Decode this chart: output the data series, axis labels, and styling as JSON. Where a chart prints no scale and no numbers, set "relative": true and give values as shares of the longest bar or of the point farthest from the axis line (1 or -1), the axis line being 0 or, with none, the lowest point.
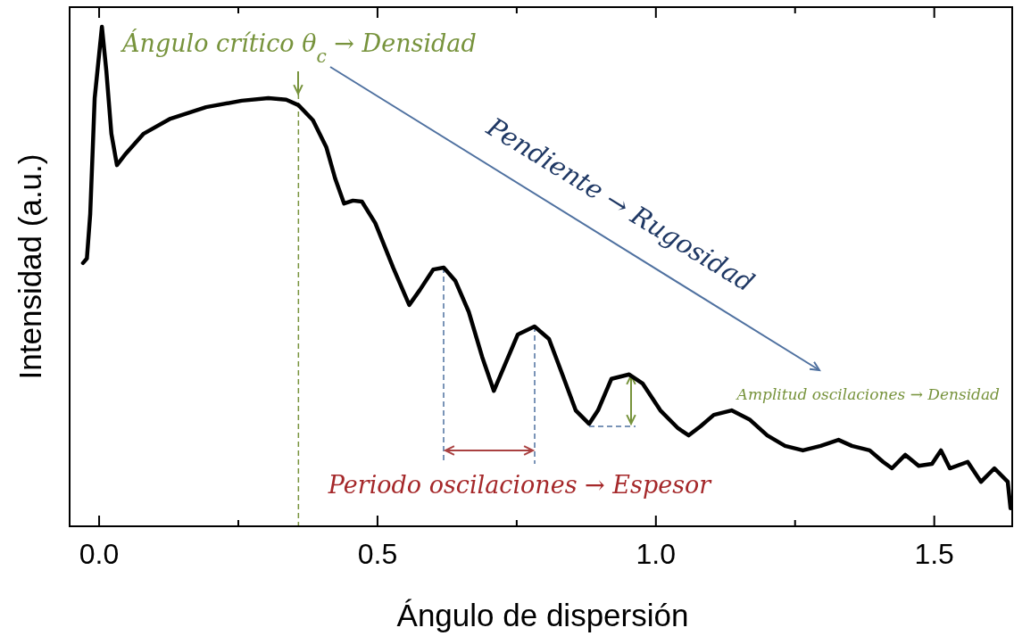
{
  "chart_data": {
    "type": "line",
    "relative": true,
    "xlabel": "Ángulo de dispersión",
    "ylabel": "Intensidad (a.u.)",
    "xlim": [
      -0.053,
      1.64
    ],
    "xticks": [
      {
        "value": 0,
        "label": "0.0"
      },
      {
        "value": 0.25,
        "label": null
      },
      {
        "value": 0.5,
        "label": "0.5"
      },
      {
        "value": 0.75,
        "label": null
      },
      {
        "value": 1,
        "label": "1.0"
      },
      {
        "value": 1.25,
        "label": null
      },
      {
        "value": 1.5,
        "label": "1.5"
      }
    ],
    "series": [
      {
        "color": "#000000",
        "x": [
          -0.029,
          -0.022,
          -0.016,
          -0.008,
          0.005,
          0.013,
          0.022,
          0.032,
          0.048,
          0.08,
          0.128,
          0.192,
          0.256,
          0.304,
          0.336,
          0.358,
          0.384,
          0.408,
          0.424,
          0.44,
          0.456,
          0.472,
          0.496,
          0.528,
          0.557,
          0.576,
          0.6,
          0.619,
          0.64,
          0.664,
          0.688,
          0.709,
          0.728,
          0.752,
          0.782,
          0.808,
          0.832,
          0.856,
          0.88,
          0.896,
          0.92,
          0.952,
          0.976,
          1.008,
          1.04,
          1.059,
          1.08,
          1.104,
          1.136,
          1.168,
          1.2,
          1.232,
          1.264,
          1.296,
          1.328,
          1.352,
          1.384,
          1.408,
          1.424,
          1.448,
          1.472,
          1.496,
          1.512,
          1.528,
          1.56,
          1.584,
          1.608,
          1.632,
          1.637
        ],
        "values": [
          0.527,
          0.536,
          0.625,
          0.857,
          1,
          0.911,
          0.786,
          0.723,
          0.746,
          0.786,
          0.816,
          0.839,
          0.852,
          0.857,
          0.854,
          0.843,
          0.813,
          0.759,
          0.696,
          0.646,
          0.652,
          0.65,
          0.607,
          0.518,
          0.443,
          0.473,
          0.514,
          0.518,
          0.491,
          0.429,
          0.339,
          0.271,
          0.321,
          0.384,
          0.4,
          0.375,
          0.304,
          0.232,
          0.205,
          0.232,
          0.295,
          0.304,
          0.286,
          0.232,
          0.196,
          0.182,
          0.2,
          0.223,
          0.232,
          0.214,
          0.182,
          0.161,
          0.152,
          0.161,
          0.173,
          0.161,
          0.152,
          0.129,
          0.116,
          0.143,
          0.121,
          0.125,
          0.152,
          0.116,
          0.129,
          0.089,
          0.116,
          0.089,
          0.036
        ]
      }
    ],
    "ref_lines": [
      {
        "axis": "x",
        "value": 0.358,
        "color": "#77933c",
        "line_style": "dashed"
      }
    ],
    "annotations": [
      "Ángulo crítico θ$_{c}$ → Densidad",
      "Pendiente → Rugosidad",
      "Periodo oscilaciones → Espesor",
      "Amplitud oscilaciones → Densidad"
    ],
    "grid": false,
    "marker": "none",
    "line_style": "solid"
  }
}
